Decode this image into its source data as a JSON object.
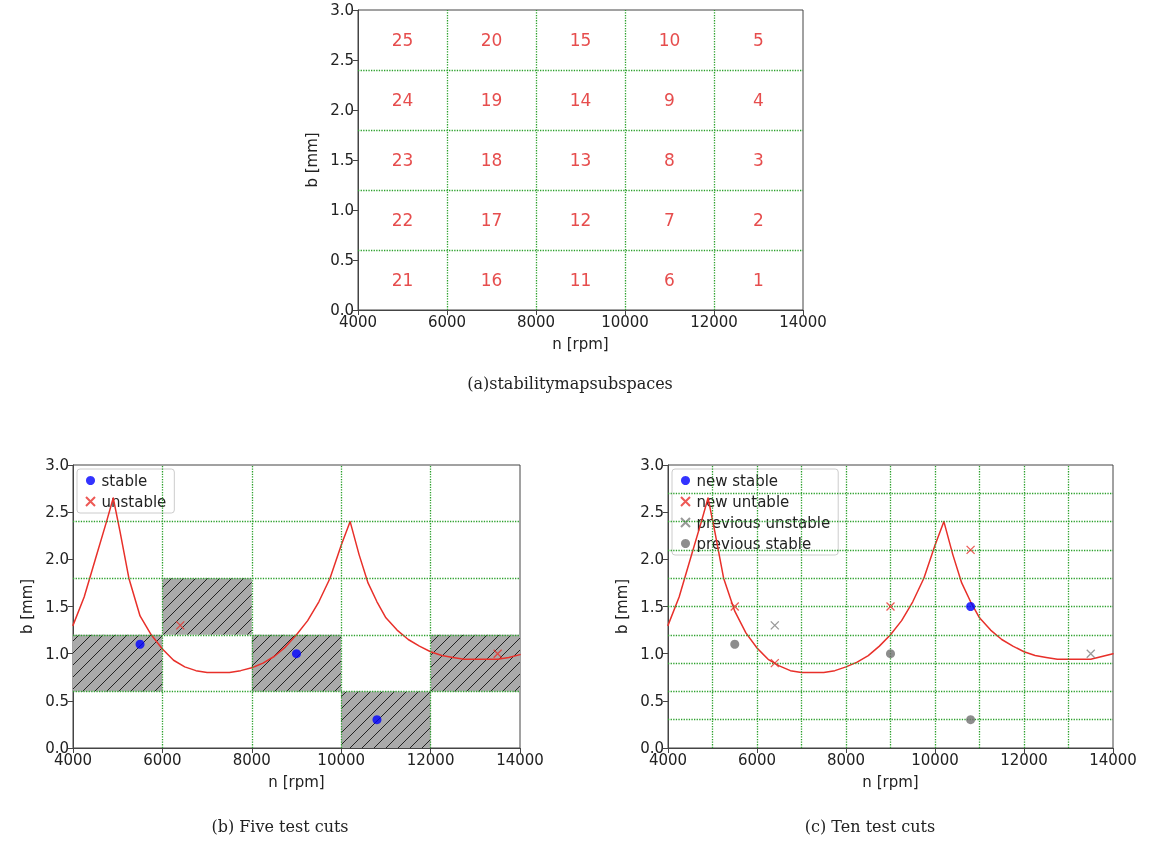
{
  "chart_data": [
    {
      "type": "scatter",
      "title": "(a)stabilitymapsubspaces",
      "xlabel": "n [rpm]",
      "ylabel": "b [mm]",
      "xlim": [
        4000,
        14000
      ],
      "xticks": [
        4000,
        6000,
        8000,
        10000,
        12000,
        14000
      ],
      "ylim": [
        0,
        3
      ],
      "yticks": [
        {
          "value": 0,
          "label": "0.0"
        },
        0.5,
        {
          "value": 1,
          "label": "1.0"
        },
        1.5,
        {
          "value": 2,
          "label": "2.0"
        },
        2.5,
        {
          "value": 3,
          "label": "3.0"
        }
      ],
      "ref_lines": [
        {
          "axis": "x",
          "value": 6000,
          "color": "#2ca02c",
          "line_style": "dotted"
        },
        {
          "axis": "x",
          "value": 8000,
          "color": "#2ca02c",
          "line_style": "dotted"
        },
        {
          "axis": "x",
          "value": 10000,
          "color": "#2ca02c",
          "line_style": "dotted"
        },
        {
          "axis": "x",
          "value": 12000,
          "color": "#2ca02c",
          "line_style": "dotted"
        },
        {
          "axis": "y",
          "value": 0.6,
          "color": "#2ca02c",
          "line_style": "dotted"
        },
        {
          "axis": "y",
          "value": 1.2,
          "color": "#2ca02c",
          "line_style": "dotted"
        },
        {
          "axis": "y",
          "value": 1.8,
          "color": "#2ca02c",
          "line_style": "dotted"
        },
        {
          "axis": "y",
          "value": 2.4,
          "color": "#2ca02c",
          "line_style": "dotted"
        }
      ],
      "annotations": [
        "25",
        "20",
        "15",
        "10",
        "5",
        "24",
        "19",
        "14",
        "9",
        "4",
        "23",
        "18",
        "13",
        "8",
        "3",
        "22",
        "17",
        "12",
        "7",
        "2",
        "21",
        "16",
        "11",
        "6",
        "1"
      ]
    },
    {
      "type": "scatter",
      "title": "(b) Five test cuts",
      "xlabel": "n [rpm]",
      "ylabel": "b [mm]",
      "legend": "top left",
      "xlim": [
        4000,
        14000
      ],
      "xticks": [
        4000,
        6000,
        8000,
        10000,
        12000,
        14000
      ],
      "ylim": [
        0,
        3
      ],
      "yticks": [
        {
          "value": 0,
          "label": "0.0"
        },
        0.5,
        {
          "value": 1,
          "label": "1.0"
        },
        1.5,
        {
          "value": 2,
          "label": "2.0"
        },
        2.5,
        {
          "value": 3,
          "label": "3.0"
        }
      ],
      "ref_lines": [
        {
          "axis": "x",
          "value": 6000,
          "color": "#2ca02c",
          "line_style": "dotted"
        },
        {
          "axis": "x",
          "value": 8000,
          "color": "#2ca02c",
          "line_style": "dotted"
        },
        {
          "axis": "x",
          "value": 10000,
          "color": "#2ca02c",
          "line_style": "dotted"
        },
        {
          "axis": "x",
          "value": 12000,
          "color": "#2ca02c",
          "line_style": "dotted"
        },
        {
          "axis": "y",
          "value": 0.6,
          "color": "#2ca02c",
          "line_style": "dotted"
        },
        {
          "axis": "y",
          "value": 1.2,
          "color": "#2ca02c",
          "line_style": "dotted"
        },
        {
          "axis": "y",
          "value": 1.8,
          "color": "#2ca02c",
          "line_style": "dotted"
        },
        {
          "axis": "y",
          "value": 2.4,
          "color": "#2ca02c",
          "line_style": "dotted"
        }
      ],
      "series": [
        {
          "type": "bar",
          "color": "#aaaaaa",
          "x": [
            5000,
            7000,
            9000,
            11000,
            13000
          ],
          "base": [
            0.6,
            1.2,
            0.6,
            0,
            0.6
          ],
          "values": [
            0.6,
            0.6,
            0.6,
            0.6,
            0.6
          ]
        },
        {
          "type": "line",
          "color": "#e8302a",
          "marker": "none",
          "line_style": "solid",
          "x": [
            4000,
            4250,
            4500,
            4750,
            4900,
            5050,
            5250,
            5500,
            5750,
            6000,
            6250,
            6500,
            6750,
            7000,
            7500,
            7750,
            8000,
            8250,
            8500,
            8750,
            9000,
            9250,
            9500,
            9750,
            10000,
            10200,
            10400,
            10600,
            10800,
            11000,
            11250,
            11500,
            11750,
            12000,
            12250,
            12500,
            12750,
            13500,
            13750,
            14000
          ],
          "values": [
            1.3,
            1.6,
            2.0,
            2.4,
            2.65,
            2.3,
            1.8,
            1.4,
            1.2,
            1.05,
            0.93,
            0.86,
            0.82,
            0.8,
            0.8,
            0.82,
            0.85,
            0.9,
            0.97,
            1.07,
            1.2,
            1.35,
            1.55,
            1.8,
            2.15,
            2.4,
            2.05,
            1.75,
            1.55,
            1.38,
            1.25,
            1.15,
            1.08,
            1.02,
            0.98,
            0.96,
            0.94,
            0.94,
            0.96,
            0.99
          ]
        },
        {
          "name": "stable",
          "color": "#0000ff",
          "marker": "circle",
          "x": [
            5500,
            9000,
            10800
          ],
          "values": [
            1.1,
            1.0,
            0.3
          ]
        },
        {
          "name": "unstable",
          "color": "#e8302a",
          "marker": "cross",
          "x": [
            6400,
            13500
          ],
          "values": [
            1.3,
            1.0
          ]
        }
      ]
    },
    {
      "type": "scatter",
      "title": "(c) Ten test cuts",
      "xlabel": "n [rpm]",
      "ylabel": "b [mm]",
      "legend": "top left",
      "xlim": [
        4000,
        14000
      ],
      "xticks": [
        4000,
        6000,
        8000,
        10000,
        12000,
        14000
      ],
      "ylim": [
        0,
        3
      ],
      "yticks": [
        {
          "value": 0,
          "label": "0.0"
        },
        0.5,
        {
          "value": 1,
          "label": "1.0"
        },
        1.5,
        {
          "value": 2,
          "label": "2.0"
        },
        2.5,
        {
          "value": 3,
          "label": "3.0"
        }
      ],
      "ref_lines": [
        {
          "axis": "x",
          "value": 5000,
          "color": "#2ca02c",
          "line_style": "dotted"
        },
        {
          "axis": "x",
          "value": 6000,
          "color": "#2ca02c",
          "line_style": "dotted"
        },
        {
          "axis": "x",
          "value": 7000,
          "color": "#2ca02c",
          "line_style": "dotted"
        },
        {
          "axis": "x",
          "value": 8000,
          "color": "#2ca02c",
          "line_style": "dotted"
        },
        {
          "axis": "x",
          "value": 9000,
          "color": "#2ca02c",
          "line_style": "dotted"
        },
        {
          "axis": "x",
          "value": 10000,
          "color": "#2ca02c",
          "line_style": "dotted"
        },
        {
          "axis": "x",
          "value": 11000,
          "color": "#2ca02c",
          "line_style": "dotted"
        },
        {
          "axis": "x",
          "value": 12000,
          "color": "#2ca02c",
          "line_style": "dotted"
        },
        {
          "axis": "x",
          "value": 13000,
          "color": "#2ca02c",
          "line_style": "dotted"
        },
        {
          "axis": "y",
          "value": 0.3,
          "color": "#2ca02c",
          "line_style": "dotted"
        },
        {
          "axis": "y",
          "value": 0.6,
          "color": "#2ca02c",
          "line_style": "dotted"
        },
        {
          "axis": "y",
          "value": 0.9,
          "color": "#2ca02c",
          "line_style": "dotted"
        },
        {
          "axis": "y",
          "value": 1.2,
          "color": "#2ca02c",
          "line_style": "dotted"
        },
        {
          "axis": "y",
          "value": 1.5,
          "color": "#2ca02c",
          "line_style": "dotted"
        },
        {
          "axis": "y",
          "value": 1.8,
          "color": "#2ca02c",
          "line_style": "dotted"
        },
        {
          "axis": "y",
          "value": 2.1,
          "color": "#2ca02c",
          "line_style": "dotted"
        },
        {
          "axis": "y",
          "value": 2.4,
          "color": "#2ca02c",
          "line_style": "dotted"
        },
        {
          "axis": "y",
          "value": 2.7,
          "color": "#2ca02c",
          "line_style": "dotted"
        }
      ],
      "series": [
        {
          "type": "line",
          "color": "#e8302a",
          "marker": "none",
          "line_style": "solid",
          "x": [
            4000,
            4250,
            4500,
            4750,
            4900,
            5050,
            5250,
            5500,
            5750,
            6000,
            6250,
            6500,
            6750,
            7000,
            7500,
            7750,
            8000,
            8250,
            8500,
            8750,
            9000,
            9250,
            9500,
            9750,
            10000,
            10200,
            10400,
            10600,
            10800,
            11000,
            11250,
            11500,
            11750,
            12000,
            12250,
            12500,
            12750,
            13500,
            13750,
            14000
          ],
          "values": [
            1.3,
            1.6,
            2.0,
            2.4,
            2.65,
            2.3,
            1.8,
            1.45,
            1.22,
            1.06,
            0.94,
            0.87,
            0.82,
            0.8,
            0.8,
            0.82,
            0.86,
            0.91,
            0.98,
            1.08,
            1.2,
            1.35,
            1.55,
            1.8,
            2.15,
            2.4,
            2.05,
            1.75,
            1.55,
            1.38,
            1.25,
            1.15,
            1.08,
            1.02,
            0.98,
            0.96,
            0.94,
            0.94,
            0.97,
            1.0
          ]
        },
        {
          "name": "new stable",
          "color": "#0000ff",
          "marker": "circle",
          "x": [
            10800
          ],
          "values": [
            1.5
          ]
        },
        {
          "name": "new untable",
          "color": "#e8302a",
          "marker": "cross",
          "x": [
            5500,
            6400,
            9000,
            10800
          ],
          "values": [
            1.5,
            0.9,
            1.5,
            2.1
          ]
        },
        {
          "name": "previous unstable",
          "color": "#808080",
          "marker": "cross",
          "x": [
            6400,
            13500
          ],
          "values": [
            1.3,
            1.0
          ]
        },
        {
          "name": "previous stable",
          "color": "#707070",
          "marker": "circle",
          "x": [
            5500,
            9000,
            10800
          ],
          "values": [
            1.1,
            1.0,
            0.3
          ]
        }
      ]
    }
  ]
}
